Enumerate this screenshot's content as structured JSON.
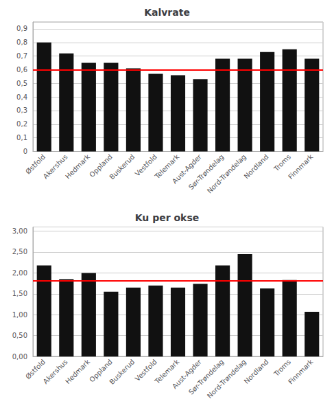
{
  "chart_data": [
    {
      "type": "bar",
      "title": "Kalvrate",
      "categories": [
        "Østfold",
        "Akershus",
        "Hedmark",
        "Oppland",
        "Buskerud",
        "Vestfold",
        "Telemark",
        "Aust-Agder",
        "Sør-Trøndelag",
        "Nord-Trøndelag",
        "Nordland",
        "Troms",
        "Finnmark"
      ],
      "values": [
        0.8,
        0.72,
        0.65,
        0.65,
        0.61,
        0.57,
        0.56,
        0.53,
        0.68,
        0.68,
        0.73,
        0.75,
        0.68
      ],
      "color": "#111111",
      "reference_line": {
        "value": 0.6,
        "color": "#ff0000"
      },
      "ylim": [
        0,
        0.95
      ],
      "yticks": [
        0,
        {
          "value": 0.1,
          "label": "0,1"
        },
        {
          "value": 0.2,
          "label": "0,2"
        },
        {
          "value": 0.3,
          "label": "0,3"
        },
        {
          "value": 0.4,
          "label": "0,4"
        },
        {
          "value": 0.5,
          "label": "0,5"
        },
        {
          "value": 0.6,
          "label": "0,6"
        },
        {
          "value": 0.7,
          "label": "0,7"
        },
        {
          "value": 0.8,
          "label": "0,8"
        },
        {
          "value": 0.9,
          "label": "0,9"
        }
      ],
      "grid": true
    },
    {
      "type": "bar",
      "title": "Ku per okse",
      "categories": [
        "Østfold",
        "Akershus",
        "Hedmark",
        "Oppland",
        "Buskerud",
        "Vestfold",
        "Telemark",
        "Aust-Agder",
        "Sør-Trøndelag",
        "Nord-Trøndelag",
        "Nordland",
        "Troms",
        "Finnmark"
      ],
      "values": [
        2.18,
        1.85,
        2.0,
        1.55,
        1.65,
        1.7,
        1.65,
        1.74,
        2.18,
        2.45,
        1.63,
        1.83,
        1.07
      ],
      "color": "#111111",
      "reference_line": {
        "value": 1.82,
        "color": "#ff0000"
      },
      "ylim": [
        0,
        3.1
      ],
      "yticks": [
        {
          "value": 0.0,
          "label": "0,00"
        },
        {
          "value": 0.5,
          "label": "0,50"
        },
        {
          "value": 1.0,
          "label": "1,00"
        },
        {
          "value": 1.5,
          "label": "1,50"
        },
        {
          "value": 2.0,
          "label": "2,00"
        },
        {
          "value": 2.5,
          "label": "2,50"
        },
        {
          "value": 3.0,
          "label": "3,00"
        }
      ],
      "grid": true
    }
  ]
}
